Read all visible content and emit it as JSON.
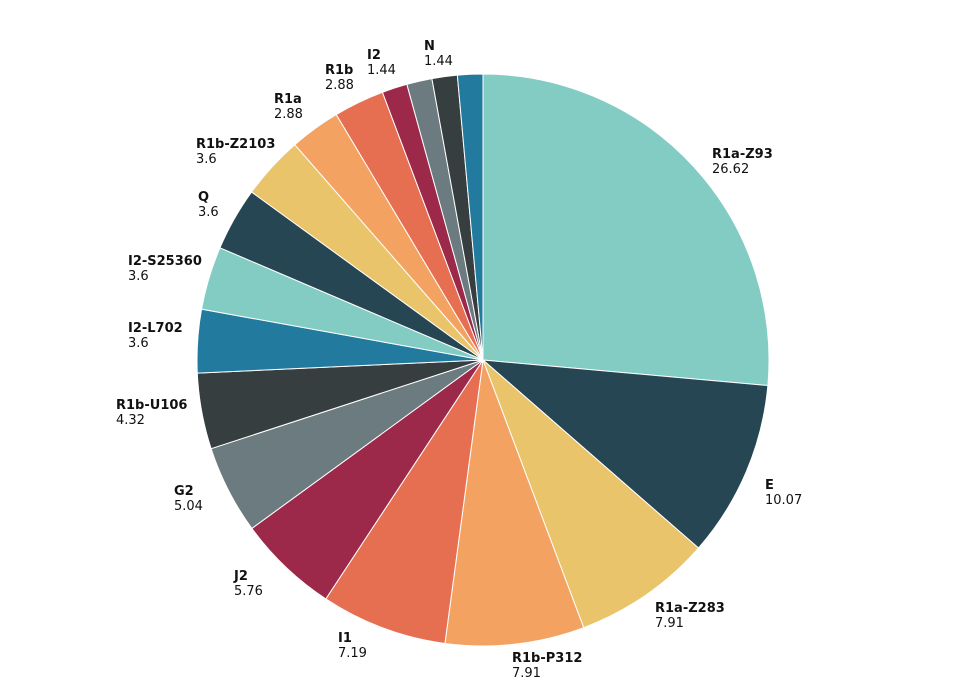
{
  "chart_data": {
    "type": "pie",
    "title": "",
    "slices": [
      {
        "label": "R1a-Z93",
        "value": 26.62,
        "color": "#82ccc4"
      },
      {
        "label": "E",
        "value": 10.07,
        "color": "#264653"
      },
      {
        "label": "R1a-Z283",
        "value": 7.91,
        "color": "#e9c46a"
      },
      {
        "label": "R1b-P312",
        "value": 7.91,
        "color": "#f4a261"
      },
      {
        "label": "I1",
        "value": 7.19,
        "color": "#e76f51"
      },
      {
        "label": "J2",
        "value": 5.76,
        "color": "#9c2949"
      },
      {
        "label": "G2",
        "value": 5.04,
        "color": "#6b7b80"
      },
      {
        "label": "R1b-U106",
        "value": 4.32,
        "color": "#373e40"
      },
      {
        "label": "I2-L702",
        "value": 3.6,
        "color": "#227a9e"
      },
      {
        "label": "I2-S25360",
        "value": 3.6,
        "color": "#82ccc4"
      },
      {
        "label": "Q",
        "value": 3.6,
        "color": "#264653"
      },
      {
        "label": "R1b-Z2103",
        "value": 3.6,
        "color": "#e9c46a"
      },
      {
        "label": "R1a",
        "value": 2.88,
        "color": "#f4a261"
      },
      {
        "label": "R1b",
        "value": 2.88,
        "color": "#e76f51"
      },
      {
        "label": "",
        "value": 1.44,
        "color": "#9c2949"
      },
      {
        "label": "I2",
        "value": 1.44,
        "color": "#6b7b80"
      },
      {
        "label": "",
        "value": 1.44,
        "color": "#373e40"
      },
      {
        "label": "N",
        "value": 1.44,
        "color": "#227a9e"
      }
    ],
    "labels_shown": [
      {
        "name": "R1a-Z93",
        "value": "26.62"
      },
      {
        "name": "E",
        "value": "10.07"
      },
      {
        "name": "R1a-Z283",
        "value": "7.91"
      },
      {
        "name": "R1b-P312",
        "value": "7.91"
      },
      {
        "name": "I1",
        "value": "7.19"
      },
      {
        "name": "J2",
        "value": "5.76"
      },
      {
        "name": "G2",
        "value": "5.04"
      },
      {
        "name": "R1b-U106",
        "value": "4.32"
      },
      {
        "name": "I2-L702",
        "value": "3.6"
      },
      {
        "name": "I2-S25360",
        "value": "3.6"
      },
      {
        "name": "Q",
        "value": "3.6"
      },
      {
        "name": "R1b-Z2103",
        "value": "3.6"
      },
      {
        "name": "R1a",
        "value": "2.88"
      },
      {
        "name": "R1b",
        "value": "2.88"
      },
      {
        "name": "I2",
        "value": "1.44"
      },
      {
        "name": "N",
        "value": "1.44"
      }
    ]
  }
}
